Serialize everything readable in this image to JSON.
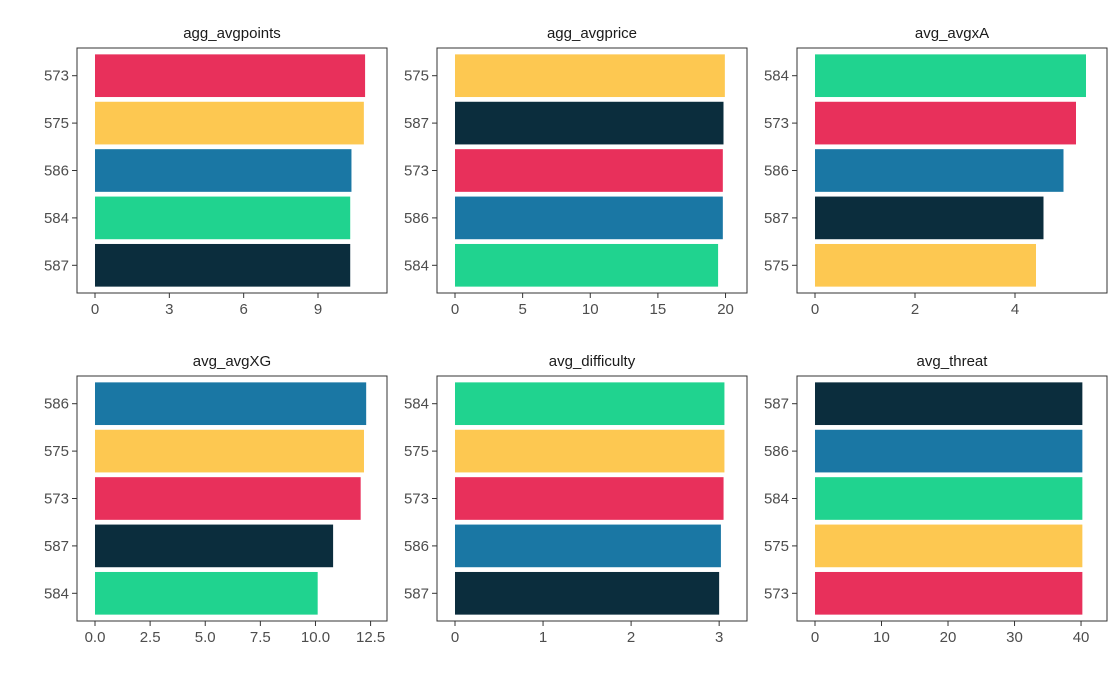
{
  "colors": {
    "573": "#E8305B",
    "575": "#FDC851",
    "586": "#1A77A4",
    "584": "#20D38F",
    "587": "#0B2D3D"
  },
  "chart_data": [
    {
      "type": "bar",
      "orientation": "horizontal",
      "title": "agg_avgpoints",
      "categories": [
        "573",
        "575",
        "586",
        "584",
        "587"
      ],
      "values": [
        10.9,
        10.85,
        10.35,
        10.3,
        10.3
      ],
      "xlim": [
        0,
        11.3
      ],
      "xticks": [
        0,
        3,
        6,
        9
      ],
      "xtick_labels": [
        "0",
        "3",
        "6",
        "9"
      ]
    },
    {
      "type": "bar",
      "orientation": "horizontal",
      "title": "agg_avgprice",
      "categories": [
        "575",
        "587",
        "573",
        "586",
        "584"
      ],
      "values": [
        19.95,
        19.85,
        19.8,
        19.8,
        19.45
      ],
      "xlim": [
        0,
        20.7
      ],
      "xticks": [
        0,
        5,
        10,
        15,
        20
      ],
      "xtick_labels": [
        "0",
        "5",
        "10",
        "15",
        "20"
      ]
    },
    {
      "type": "bar",
      "orientation": "horizontal",
      "title": "avg_avgxA",
      "categories": [
        "584",
        "573",
        "586",
        "587",
        "575"
      ],
      "values": [
        5.42,
        5.22,
        4.97,
        4.57,
        4.42
      ],
      "xlim": [
        0,
        5.6
      ],
      "xticks": [
        0,
        2,
        4
      ],
      "xtick_labels": [
        "0",
        "2",
        "4"
      ]
    },
    {
      "type": "bar",
      "orientation": "horizontal",
      "title": "avg_avgXG",
      "categories": [
        "586",
        "575",
        "573",
        "587",
        "584"
      ],
      "values": [
        12.3,
        12.2,
        12.05,
        10.8,
        10.1
      ],
      "xlim": [
        0,
        12.7
      ],
      "xticks": [
        0,
        2.5,
        5,
        7.5,
        10,
        12.5
      ],
      "xtick_labels": [
        "0.0",
        "2.5",
        "5.0",
        "7.5",
        "10.0",
        "12.5"
      ]
    },
    {
      "type": "bar",
      "orientation": "horizontal",
      "title": "avg_difficulty",
      "categories": [
        "584",
        "575",
        "573",
        "586",
        "587"
      ],
      "values": [
        3.06,
        3.06,
        3.05,
        3.02,
        3.0
      ],
      "xlim": [
        0,
        3.18
      ],
      "xticks": [
        0,
        1,
        2,
        3
      ],
      "xtick_labels": [
        "0",
        "1",
        "2",
        "3"
      ]
    },
    {
      "type": "bar",
      "orientation": "horizontal",
      "title": "avg_threat",
      "categories": [
        "587",
        "586",
        "584",
        "575",
        "573"
      ],
      "values": [
        40.2,
        40.2,
        40.2,
        40.2,
        40.2
      ],
      "xlim": [
        0,
        42.1
      ],
      "xticks": [
        0,
        10,
        20,
        30,
        40
      ],
      "xtick_labels": [
        "0",
        "10",
        "20",
        "30",
        "40"
      ]
    }
  ]
}
